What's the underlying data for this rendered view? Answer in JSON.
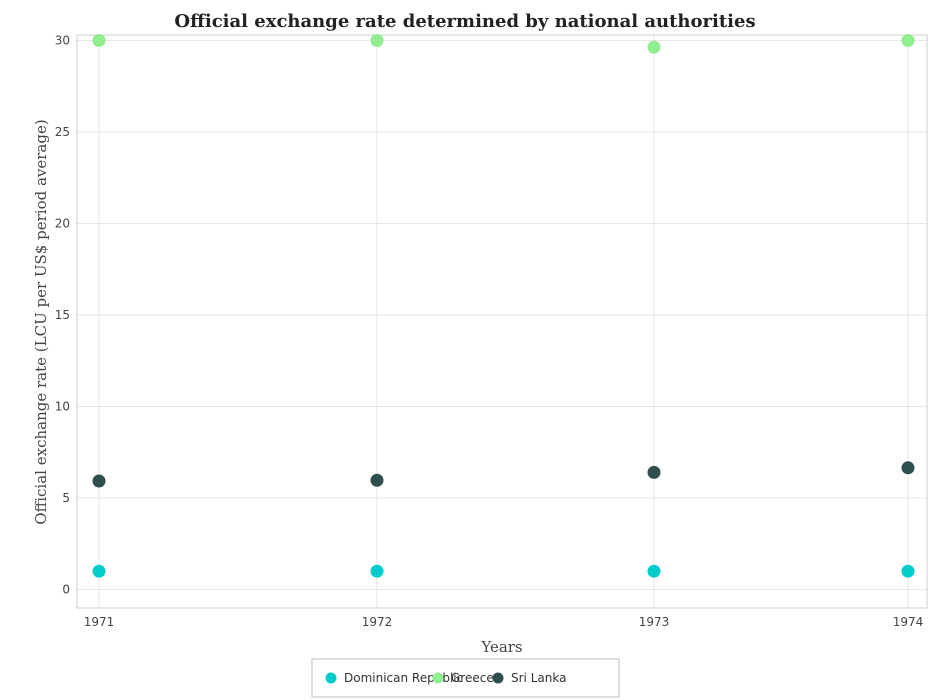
{
  "chart_data": {
    "type": "scatter",
    "title": "Official exchange rate determined by national authorities",
    "xlabel": "Years",
    "ylabel": "Official exchange rate (LCU per US$ period average)",
    "x": [
      "1971",
      "1972",
      "1973",
      "1974"
    ],
    "ylim": [
      0,
      32.5
    ],
    "yticks": [
      0,
      5,
      10,
      15,
      20,
      25,
      30
    ],
    "grid": true,
    "legend_position": "bottom-center",
    "series": [
      {
        "name": "Dominican Republic",
        "color": "#00cccc",
        "values": [
          1.0,
          1.0,
          1.0,
          1.0
        ]
      },
      {
        "name": "Greece",
        "color": "#90ee90",
        "values": [
          30.0,
          30.0,
          29.63,
          30.0
        ]
      },
      {
        "name": "Sri Lanka",
        "color": "#2f4f4f",
        "values": [
          5.93,
          5.97,
          6.4,
          6.65
        ]
      }
    ]
  }
}
